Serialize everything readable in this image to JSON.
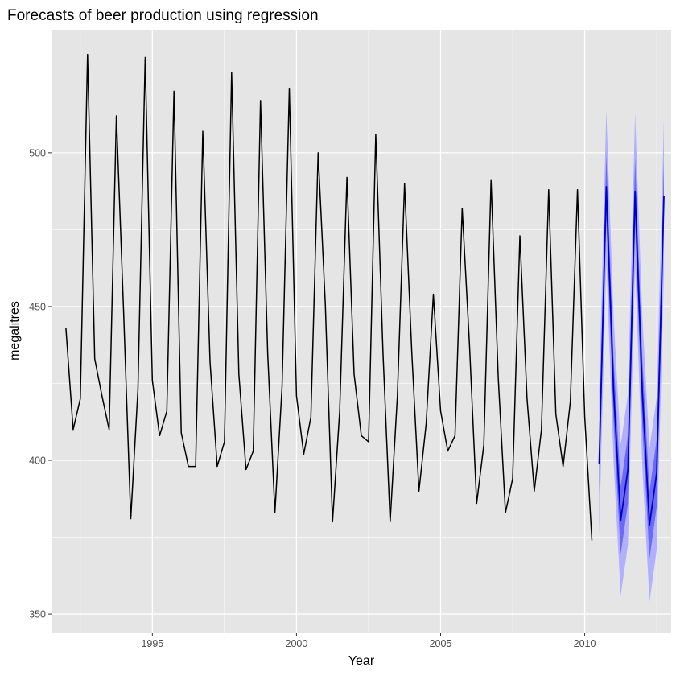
{
  "chart_data": {
    "type": "line",
    "title": "Forecasts of beer production using regression",
    "xlabel": "Year",
    "ylabel": "megalitres",
    "xlim": [
      1991.5,
      2013.0
    ],
    "ylim": [
      344,
      540
    ],
    "x_ticks": [
      1995,
      2000,
      2005,
      2010
    ],
    "x_tick_labels": [
      "1995",
      "2000",
      "2005",
      "2010"
    ],
    "y_ticks": [
      350,
      400,
      450,
      500
    ],
    "y_tick_labels": [
      "350",
      "400",
      "450",
      "500"
    ],
    "grid": true,
    "legend": "none",
    "colors": {
      "panel": "#e5e5e5",
      "grid": "#ffffff",
      "observed": "#000000",
      "forecast": "#0000cc",
      "band95": "#b0b0ff",
      "band80": "#6a6af4",
      "tick_text": "#4d4d4d"
    },
    "series": [
      {
        "role": "observed",
        "x": [
          1992.0,
          1992.25,
          1992.5,
          1992.75,
          1993.0,
          1993.25,
          1993.5,
          1993.75,
          1994.0,
          1994.25,
          1994.5,
          1994.75,
          1995.0,
          1995.25,
          1995.5,
          1995.75,
          1996.0,
          1996.25,
          1996.5,
          1996.75,
          1997.0,
          1997.25,
          1997.5,
          1997.75,
          1998.0,
          1998.25,
          1998.5,
          1998.75,
          1999.0,
          1999.25,
          1999.5,
          1999.75,
          2000.0,
          2000.25,
          2000.5,
          2000.75,
          2001.0,
          2001.25,
          2001.5,
          2001.75,
          2002.0,
          2002.25,
          2002.5,
          2002.75,
          2003.0,
          2003.25,
          2003.5,
          2003.75,
          2004.0,
          2004.25,
          2004.5,
          2004.75,
          2005.0,
          2005.25,
          2005.5,
          2005.75,
          2006.0,
          2006.25,
          2006.5,
          2006.75,
          2007.0,
          2007.25,
          2007.5,
          2007.75,
          2008.0,
          2008.25,
          2008.5,
          2008.75,
          2009.0,
          2009.25,
          2009.5,
          2009.75,
          2010.0,
          2010.25
        ],
        "values": [
          443,
          410,
          420,
          532,
          433,
          421,
          410,
          512,
          449,
          381,
          423,
          531,
          426,
          408,
          416,
          520,
          409,
          398,
          398,
          507,
          432,
          398,
          406,
          526,
          428,
          397,
          403,
          517,
          435,
          383,
          424,
          521,
          421,
          402,
          414,
          500,
          451,
          380,
          416,
          492,
          428,
          408,
          406,
          506,
          435,
          380,
          421,
          490,
          435,
          390,
          412,
          454,
          416,
          403,
          408,
          482,
          438,
          386,
          405,
          491,
          427,
          383,
          394,
          473,
          420,
          390,
          410,
          488,
          415,
          398,
          419,
          488,
          414,
          374
        ]
      },
      {
        "role": "forecast",
        "x": [
          2010.5,
          2010.75,
          2011.0,
          2011.25,
          2011.5,
          2011.75,
          2012.0,
          2012.25,
          2012.5,
          2012.75
        ],
        "values": [
          398.8,
          489.0,
          423.0,
          380.5,
          397.0,
          487.5,
          422.0,
          379.0,
          396.0,
          486.0
        ],
        "lo80": [
          388.5,
          478.5,
          412.5,
          369.5,
          386.0,
          476.5,
          411.0,
          368.0,
          385.0,
          475.0
        ],
        "hi80": [
          409.0,
          499.5,
          433.5,
          391.5,
          408.0,
          498.5,
          433.0,
          390.0,
          407.0,
          497.0
        ],
        "lo95": [
          375.5,
          465.0,
          399.5,
          356.0,
          372.5,
          463.0,
          397.5,
          354.0,
          371.0,
          461.0
        ],
        "hi95": [
          422.0,
          514.0,
          447.0,
          405.0,
          421.5,
          513.0,
          446.5,
          404.0,
          420.5,
          511.0
        ]
      }
    ]
  }
}
